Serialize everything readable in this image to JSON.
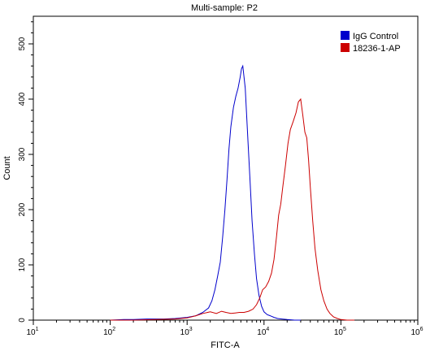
{
  "chart_data": {
    "type": "line",
    "title": "Multi-sample: P2",
    "xlabel": "FITC-A",
    "ylabel": "Count",
    "x_scale": "log",
    "xlim": [
      10,
      1000000
    ],
    "ylim": [
      0,
      550
    ],
    "x_ticks": [
      10,
      100,
      1000,
      10000,
      100000,
      1000000
    ],
    "x_tick_labels": [
      {
        "base": "10",
        "exp": "1"
      },
      {
        "base": "10",
        "exp": "2"
      },
      {
        "base": "10",
        "exp": "3"
      },
      {
        "base": "10",
        "exp": "4"
      },
      {
        "base": "10",
        "exp": "5"
      },
      {
        "base": "10",
        "exp": "6"
      }
    ],
    "y_ticks": [
      0,
      100,
      200,
      300,
      400,
      500
    ],
    "y_tick_labels": [
      "0",
      "100",
      "200",
      "300",
      "400",
      "500"
    ],
    "grid": false,
    "legend_position": "top-right",
    "series": [
      {
        "name": "IgG Control",
        "color": "#0000cc",
        "x": [
          100,
          150,
          200,
          300,
          500,
          700,
          1000,
          1300,
          1600,
          1900,
          2100,
          2300,
          2500,
          2700,
          2900,
          3100,
          3300,
          3500,
          3700,
          4000,
          4300,
          4600,
          4900,
          5100,
          5300,
          5500,
          5700,
          5900,
          6200,
          6600,
          7000,
          7500,
          8000,
          8600,
          9300,
          10000,
          11000,
          12000,
          13500,
          15000,
          17000,
          20000,
          25000,
          30000
        ],
        "y": [
          0,
          1,
          1,
          2,
          2,
          3,
          5,
          8,
          14,
          22,
          35,
          55,
          80,
          105,
          150,
          200,
          255,
          310,
          350,
          385,
          405,
          420,
          440,
          455,
          460,
          440,
          420,
          380,
          320,
          250,
          180,
          120,
          75,
          45,
          25,
          15,
          10,
          8,
          5,
          3,
          2,
          1,
          0,
          0
        ]
      },
      {
        "name": "18236-1-AP",
        "color": "#cc0000",
        "x": [
          100,
          200,
          400,
          700,
          1000,
          1300,
          1600,
          2000,
          2400,
          2800,
          3200,
          3700,
          4200,
          4800,
          5500,
          6300,
          7200,
          8000,
          8800,
          9600,
          10500,
          11500,
          12500,
          13500,
          14500,
          15500,
          16500,
          17500,
          19000,
          20500,
          22000,
          24000,
          26000,
          28000,
          30000,
          32000,
          34000,
          36000,
          38000,
          40000,
          43000,
          46000,
          50000,
          55000,
          60000,
          66000,
          72000,
          80000,
          90000,
          100000,
          120000,
          150000
        ],
        "y": [
          0,
          0,
          1,
          2,
          4,
          8,
          12,
          15,
          12,
          16,
          14,
          12,
          13,
          14,
          14,
          16,
          20,
          28,
          40,
          55,
          60,
          70,
          85,
          110,
          150,
          190,
          210,
          240,
          280,
          320,
          345,
          360,
          375,
          395,
          400,
          370,
          340,
          330,
          290,
          240,
          180,
          130,
          90,
          55,
          35,
          20,
          12,
          6,
          3,
          1,
          0,
          0
        ]
      }
    ]
  }
}
